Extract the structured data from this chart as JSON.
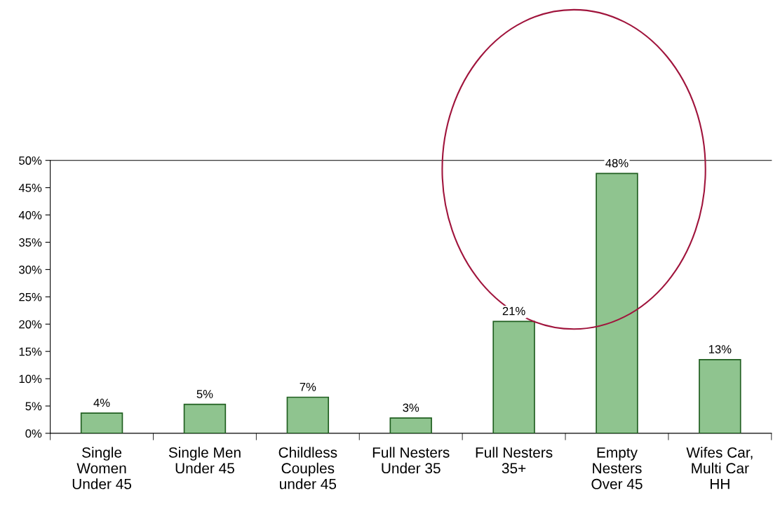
{
  "chart_data": {
    "type": "bar",
    "categories": [
      "Single\nWomen\nUnder 45",
      "Single Men\nUnder 45",
      "Childless\nCouples\nunder 45",
      "Full Nesters\nUnder 35",
      "Full Nesters\n35+",
      "Empty\nNesters\nOver 45",
      "Wifes Car,\nMulti Car\nHH"
    ],
    "values": [
      3.7,
      5.3,
      6.6,
      2.8,
      20.5,
      47.6,
      13.5
    ],
    "value_labels": [
      "4%",
      "5%",
      "7%",
      "3%",
      "21%",
      "48%",
      "13%"
    ],
    "color": "#8fc48f",
    "ylim": [
      0,
      50
    ],
    "yticks": [
      {
        "value": 0,
        "label": "0%"
      },
      {
        "value": 5,
        "label": "5%"
      },
      {
        "value": 10,
        "label": "10%"
      },
      {
        "value": 15,
        "label": "15%"
      },
      {
        "value": 20,
        "label": "20%"
      },
      {
        "value": 25,
        "label": "25%"
      },
      {
        "value": 30,
        "label": "30%"
      },
      {
        "value": 35,
        "label": "35%"
      },
      {
        "value": 40,
        "label": "40%"
      },
      {
        "value": 45,
        "label": "45%"
      },
      {
        "value": 50,
        "label": "50%"
      }
    ],
    "grid": false,
    "legend": false
  }
}
